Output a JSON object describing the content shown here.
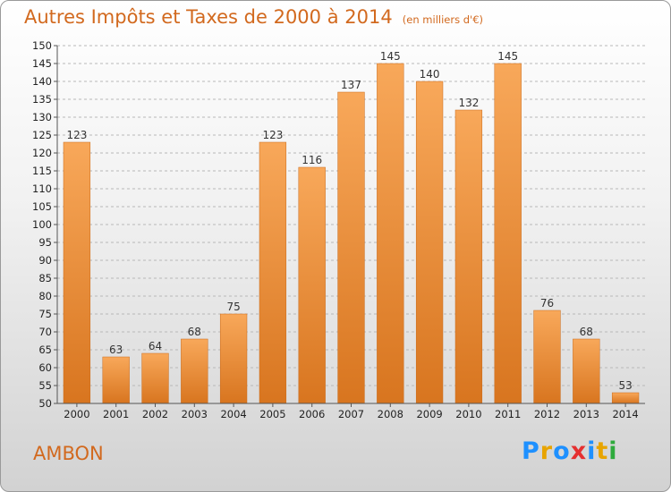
{
  "title": "Autres Impôts et Taxes de 2000 à 2014",
  "unit_note": "(en milliers d'€)",
  "commune": "AMBON",
  "logo": {
    "text": "Proxiti",
    "letters": [
      "P",
      "r",
      "o",
      "x",
      "i",
      "t",
      "i"
    ],
    "colors": [
      "#1e90ff",
      "#e8a400",
      "#1e90ff",
      "#e53030",
      "#1e90ff",
      "#e8a400",
      "#2eaa3c"
    ]
  },
  "colors": {
    "accent": "#d2691e",
    "bar_top": "#f8a85a",
    "bar_bottom": "#d8751f",
    "grid": "#b8b8b8"
  },
  "chart_data": {
    "type": "bar",
    "categories": [
      "2000",
      "2001",
      "2002",
      "2003",
      "2004",
      "2005",
      "2006",
      "2007",
      "2008",
      "2009",
      "2010",
      "2011",
      "2012",
      "2013",
      "2014"
    ],
    "values": [
      123,
      63,
      64,
      68,
      75,
      123,
      116,
      137,
      145,
      140,
      132,
      145,
      76,
      68,
      53
    ],
    "title": "Autres Impôts et Taxes de 2000 à 2014",
    "xlabel": "",
    "ylabel": "",
    "ylim": [
      50,
      150
    ],
    "yticks": [
      50,
      55,
      60,
      65,
      70,
      75,
      80,
      85,
      90,
      95,
      100,
      105,
      110,
      115,
      120,
      125,
      130,
      135,
      140,
      145,
      150
    ],
    "grid": true,
    "show_value_labels": true
  }
}
